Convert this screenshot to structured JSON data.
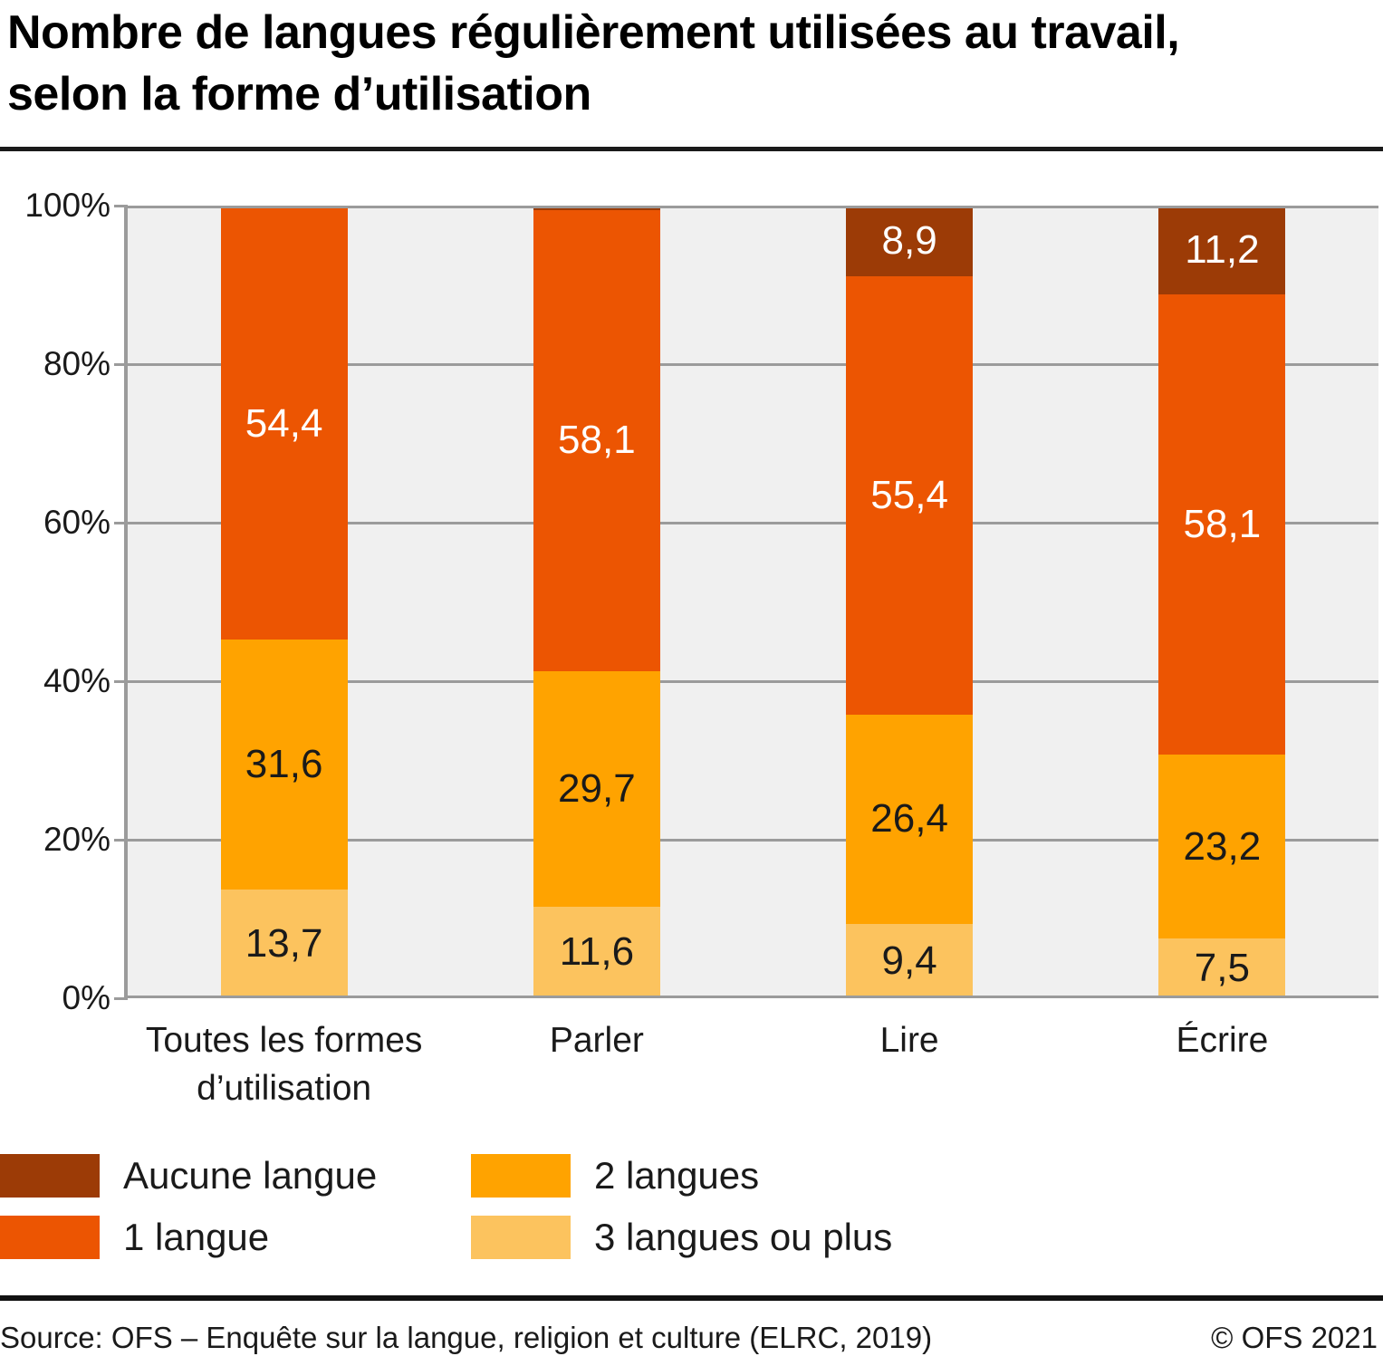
{
  "title": {
    "line1": "Nombre de langues régulièrement utilisées au travail,",
    "line2": "selon la forme d’utilisation"
  },
  "colors": {
    "plot_background": "#F0F0F0",
    "grid": "#9B9B9B",
    "rule": "#1A1A1A",
    "text": "#1A1A1A",
    "aucune_langue": "#9C3B06",
    "une_langue": "#EC5502",
    "deux_langues": "#FFA300",
    "trois_langues_ou_plus": "#FCC35E"
  },
  "chart_data": {
    "type": "bar",
    "stacked": true,
    "value_unit": "percent",
    "title": "Nombre de langues régulièrement utilisées au travail, selon la forme d’utilisation",
    "categories": [
      {
        "label": "Toutes les formes d’utilisation",
        "lines": [
          "Toutes les formes",
          "d’utilisation"
        ]
      },
      {
        "label": "Parler",
        "lines": [
          "Parler"
        ]
      },
      {
        "label": "Lire",
        "lines": [
          "Lire"
        ]
      },
      {
        "label": "Écrire",
        "lines": [
          "Écrire"
        ]
      }
    ],
    "series": [
      {
        "name": "Aucune langue",
        "color": "#9C3B06",
        "label_color": "#FFFFFF",
        "values": [
          0.3,
          0.6,
          8.9,
          11.2
        ],
        "display": [
          "",
          "",
          "8,9",
          "11,2"
        ]
      },
      {
        "name": "1 langue",
        "color": "#EC5502",
        "label_color": "#FFFFFF",
        "values": [
          54.4,
          58.1,
          55.4,
          58.1
        ],
        "display": [
          "54,4",
          "58,1",
          "55,4",
          "58,1"
        ]
      },
      {
        "name": "2 langues",
        "color": "#FFA300",
        "label_color": "#1A1A1A",
        "values": [
          31.6,
          29.7,
          26.4,
          23.2
        ],
        "display": [
          "31,6",
          "29,7",
          "26,4",
          "23,2"
        ]
      },
      {
        "name": "3 langues ou plus",
        "color": "#FCC35E",
        "label_color": "#1A1A1A",
        "values": [
          13.7,
          11.6,
          9.4,
          7.5
        ],
        "display": [
          "13,7",
          "11,6",
          "9,4",
          "7,5"
        ]
      }
    ],
    "y_axis": {
      "min": 0,
      "max": 100,
      "grid": true,
      "tick_values": [
        0,
        20,
        40,
        60,
        80,
        100
      ],
      "tick_labels": [
        "0%",
        "20%",
        "40%",
        "60%",
        "80%",
        "100%"
      ]
    },
    "legend_position": "bottom"
  },
  "legend": {
    "items": [
      {
        "label": "Aucune langue",
        "color": "#9C3B06"
      },
      {
        "label": "2 langues",
        "color": "#FFA300"
      },
      {
        "label": "1 langue",
        "color": "#EC5502"
      },
      {
        "label": "3 langues ou plus",
        "color": "#FCC35E"
      }
    ]
  },
  "footer": {
    "source": "Source: OFS – Enquête sur la langue, religion et culture (ELRC, 2019)",
    "copyright": "© OFS 2021"
  }
}
